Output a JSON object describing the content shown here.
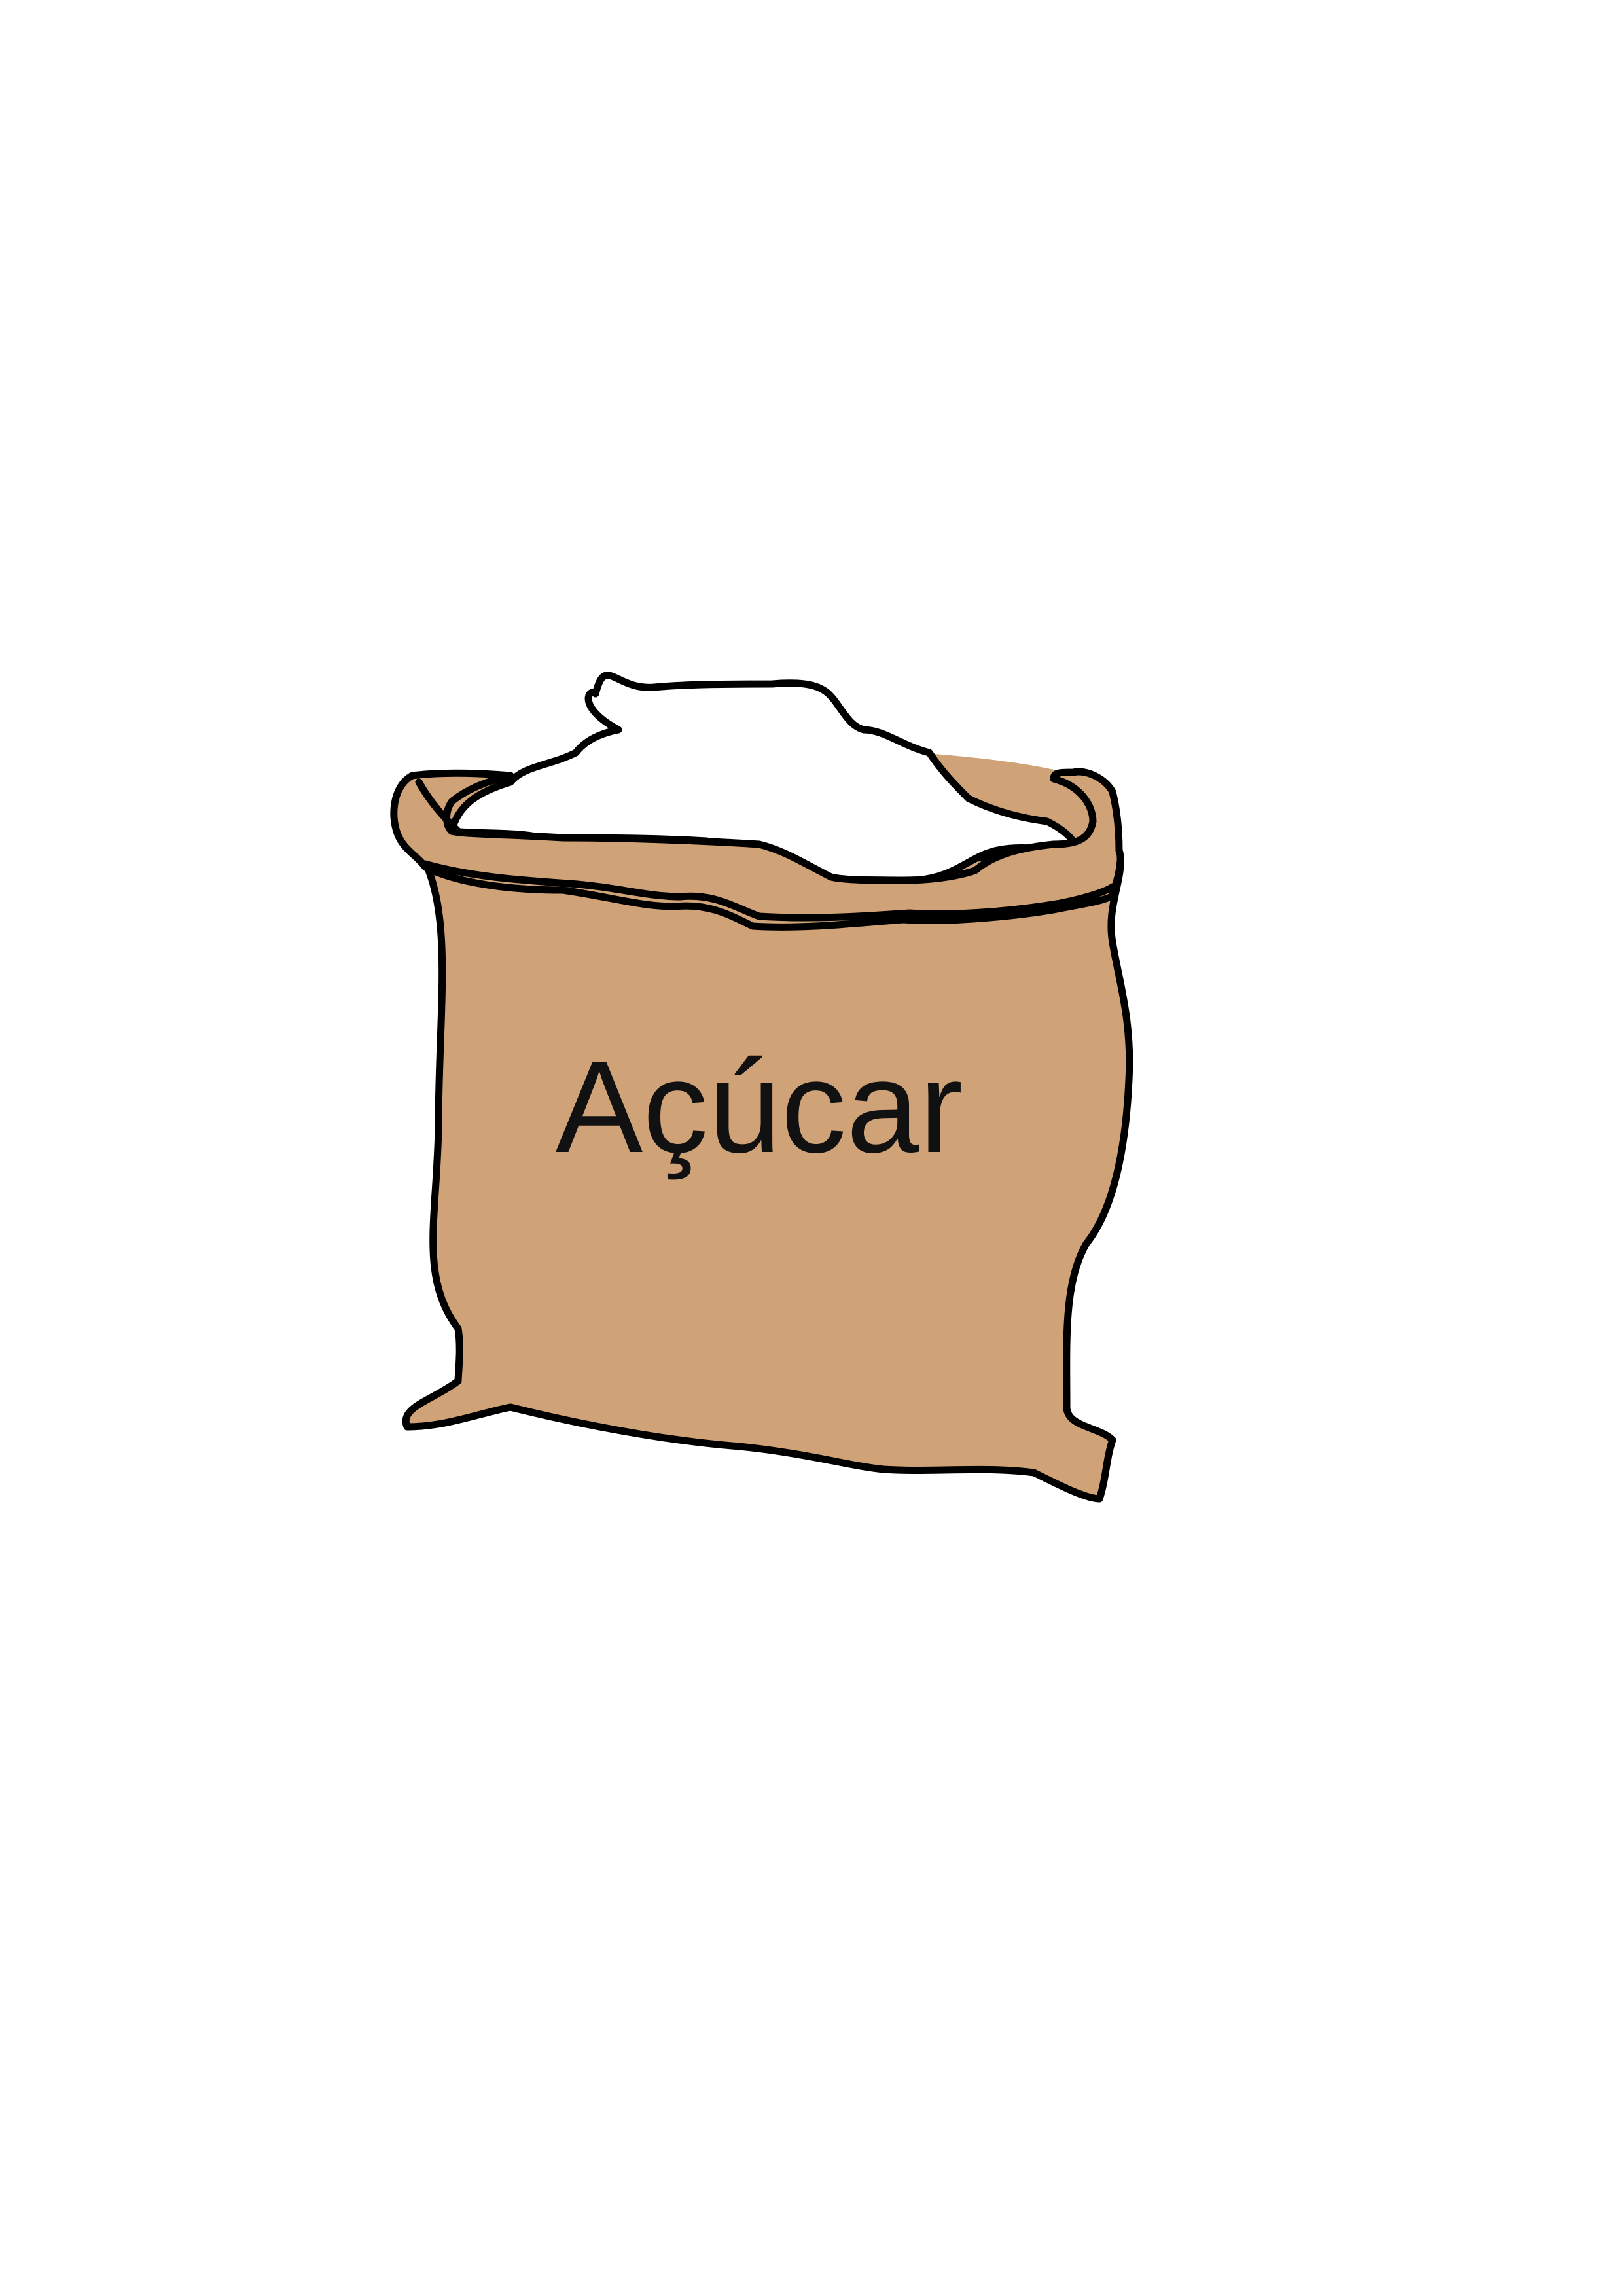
{
  "sack": {
    "label": "Açúcar",
    "colors": {
      "burlap": "#cfa277",
      "sugar": "#ffffff",
      "outline": "#000000",
      "text": "#111111"
    }
  }
}
